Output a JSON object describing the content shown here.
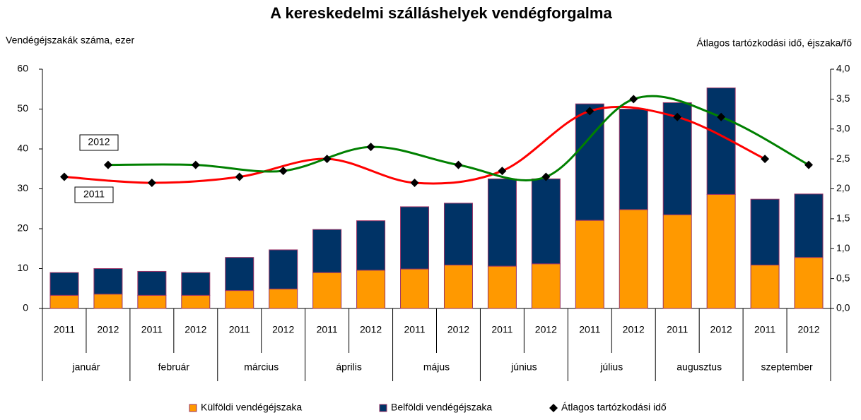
{
  "chart_data": {
    "type": "bar",
    "title": "A kereskedelmi szálláshelyek vendégforgalma",
    "y_label": "Vendégéjszakák száma, ezer",
    "y2_label": "Átlagos tartózkodási idő, éjszaka/fő",
    "categories": [
      "2011",
      "2012",
      "2011",
      "2012",
      "2011",
      "2012",
      "2011",
      "2012",
      "2011",
      "2012",
      "2011",
      "2012",
      "2011",
      "2012",
      "2011",
      "2012",
      "2011",
      "2012"
    ],
    "groups": [
      "január",
      "február",
      "március",
      "április",
      "május",
      "június",
      "július",
      "augusztus",
      "szeptember"
    ],
    "series": [
      {
        "name": "Külföldi vendégéjszaka",
        "color": "#ff9900",
        "values": [
          3.3,
          3.6,
          3.3,
          3.3,
          4.5,
          4.9,
          9.0,
          9.6,
          9.9,
          10.9,
          10.6,
          11.2,
          22.1,
          24.8,
          23.5,
          28.6,
          10.9,
          12.8
        ]
      },
      {
        "name": "Belföldi vendégéjszaka",
        "color": "#003366",
        "values": [
          5.7,
          6.4,
          6.0,
          5.7,
          8.3,
          9.8,
          10.8,
          12.4,
          15.6,
          15.5,
          21.9,
          21.3,
          29.2,
          25.2,
          28.1,
          26.7,
          16.5,
          15.9
        ]
      },
      {
        "name": "Átlagos tartózkodási idő",
        "color": "#000000",
        "axis": "y2",
        "values": [
          2.2,
          2.4,
          2.1,
          2.4,
          2.2,
          2.3,
          2.5,
          2.7,
          2.1,
          2.4,
          2.3,
          2.2,
          3.3,
          3.5,
          3.2,
          3.2,
          2.5,
          2.4
        ]
      }
    ],
    "trend_lines": [
      {
        "label": "2011",
        "color": "#ff0000"
      },
      {
        "label": "2012",
        "color": "#008000"
      }
    ],
    "ylim": [
      0,
      60
    ],
    "yticks": [
      0,
      10,
      20,
      30,
      40,
      50,
      60
    ],
    "y2lim": [
      0,
      4
    ],
    "y2ticks": [
      {
        "value": 0,
        "label": "0,0"
      },
      {
        "value": 0.5,
        "label": "0,5"
      },
      {
        "value": 1,
        "label": "1,0"
      },
      {
        "value": 1.5,
        "label": "1,5"
      },
      {
        "value": 2,
        "label": "2,0"
      },
      {
        "value": 2.5,
        "label": "2,5"
      },
      {
        "value": 3,
        "label": "3,0"
      },
      {
        "value": 3.5,
        "label": "3,5"
      },
      {
        "value": 4,
        "label": "4,0"
      }
    ],
    "grid": false,
    "legend": "bottom"
  }
}
